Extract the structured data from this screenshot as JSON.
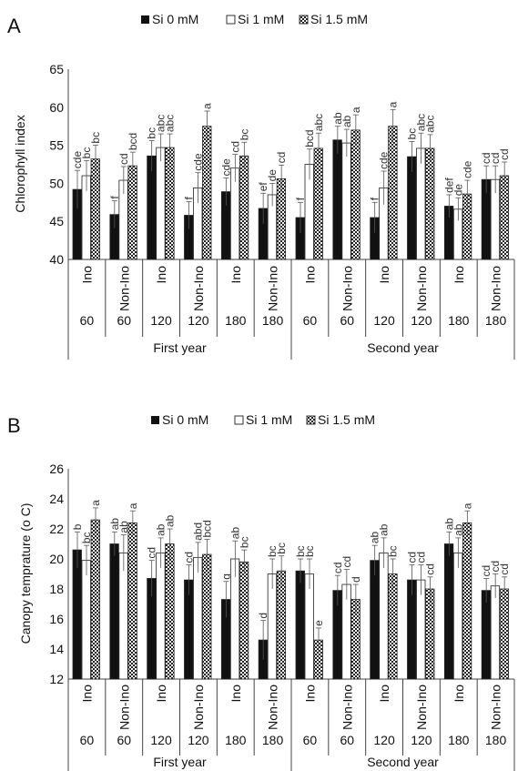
{
  "legend": {
    "series": [
      "Si 0  mM",
      "Si 1 mM",
      "Si 1.5 mM"
    ]
  },
  "colors": {
    "s0": "#111111",
    "s1": "#ffffff",
    "s2": "#ffffff",
    "axis": "#444444"
  },
  "chart_data": [
    {
      "type": "bar",
      "panel_label": "A",
      "ylabel": "Chlorophyll index",
      "ylim": [
        40,
        65
      ],
      "yticks": [
        40,
        45,
        50,
        55,
        60,
        65
      ],
      "categories": [
        "Ino",
        "Non-Ino",
        "Ino",
        "Non-Ino",
        "Ino",
        "Non-Ino",
        "Ino",
        "Non-Ino",
        "Ino",
        "Non-Ino",
        "Ino",
        "Non-Ino"
      ],
      "doses": [
        "60",
        "60",
        "120",
        "120",
        "180",
        "180",
        "60",
        "60",
        "120",
        "120",
        "180",
        "180"
      ],
      "groups": [
        {
          "label": "First year",
          "span": 6
        },
        {
          "label": "Second year",
          "span": 6
        }
      ],
      "series": [
        {
          "name": "Si 0  mM",
          "values": [
            49.2,
            45.9,
            53.6,
            45.8,
            48.9,
            46.7,
            45.5,
            55.7,
            45.5,
            53.5,
            47.0,
            50.5
          ],
          "errors": [
            2.5,
            1.8,
            2.0,
            1.8,
            1.8,
            2.0,
            2.0,
            1.8,
            2.0,
            2.0,
            1.5,
            1.8
          ],
          "labels": [
            "cde",
            "f",
            "bc",
            "f",
            "cde",
            "ef",
            "f",
            "ab",
            "f",
            "bc",
            "def",
            "cd"
          ]
        },
        {
          "name": "Si 1 mM",
          "values": [
            51.0,
            50.4,
            54.7,
            49.4,
            52.0,
            48.5,
            52.5,
            55.3,
            49.4,
            54.6,
            46.6,
            50.5
          ],
          "errors": [
            2.0,
            1.8,
            1.8,
            2.0,
            1.8,
            1.5,
            2.0,
            1.8,
            2.2,
            2.0,
            1.5,
            1.8
          ],
          "labels": [
            "bc",
            "cd",
            "abc",
            "cde",
            "cd",
            "de",
            "bcd",
            "ab",
            "cde",
            "abc",
            "de",
            "cd"
          ]
        },
        {
          "name": "Si 1.5 mM",
          "values": [
            53.2,
            52.3,
            54.7,
            57.5,
            53.6,
            50.6,
            54.6,
            57.0,
            57.5,
            54.6,
            48.6,
            51.0
          ],
          "errors": [
            1.8,
            1.8,
            1.8,
            2.0,
            1.8,
            1.8,
            2.0,
            2.0,
            2.2,
            1.8,
            1.8,
            1.8
          ],
          "labels": [
            "bc",
            "bcd",
            "abc",
            "a",
            "bc",
            "cd",
            "abc",
            "a",
            "a",
            "abc",
            "cde",
            "cd"
          ]
        }
      ]
    },
    {
      "type": "bar",
      "panel_label": "B",
      "ylabel": "Canopy temprature (o C)",
      "ylim": [
        12,
        26
      ],
      "yticks": [
        12,
        14,
        16,
        18,
        20,
        22,
        24,
        26
      ],
      "categories": [
        "Ino",
        "Non-Ino",
        "Ino",
        "Non-Ino",
        "Ino",
        "Non-Ino",
        "Ino",
        "Non-Ino",
        "Ino",
        "Non-Ino",
        "Ino",
        "Non-Ino"
      ],
      "doses": [
        "60",
        "60",
        "120",
        "120",
        "180",
        "180",
        "60",
        "60",
        "120",
        "120",
        "180",
        "180"
      ],
      "groups": [
        {
          "label": "First year",
          "span": 6
        },
        {
          "label": "Second year",
          "span": 6
        }
      ],
      "series": [
        {
          "name": "Si 0  mM",
          "values": [
            20.6,
            21.0,
            18.7,
            18.6,
            17.3,
            14.6,
            19.2,
            17.9,
            19.9,
            18.6,
            21.0,
            17.9
          ],
          "errors": [
            1.2,
            0.8,
            1.2,
            1.0,
            1.2,
            1.3,
            0.8,
            1.0,
            1.0,
            1.0,
            0.8,
            0.8
          ],
          "labels": [
            "b",
            "ab",
            "cd",
            "cd",
            "g",
            "d",
            "bc",
            "cd",
            "ab",
            "cd",
            "ab",
            "cd"
          ]
        },
        {
          "name": "Si 1 mM",
          "values": [
            19.9,
            20.4,
            20.4,
            20.1,
            20.0,
            19.0,
            19.0,
            18.3,
            20.4,
            18.6,
            20.4,
            18.2
          ],
          "errors": [
            1.0,
            1.2,
            1.0,
            1.0,
            1.2,
            1.0,
            1.0,
            1.0,
            1.0,
            1.0,
            1.0,
            0.8
          ],
          "labels": [
            "bc",
            "ab",
            "ab",
            "abd",
            "ab",
            "bc",
            "bc",
            "cd",
            "ab",
            "cd",
            "ab",
            "cd"
          ]
        },
        {
          "name": "Si 1.5 mM",
          "values": [
            22.6,
            22.4,
            21.0,
            20.3,
            19.8,
            19.2,
            14.6,
            17.3,
            19.0,
            18.0,
            22.4,
            18.0
          ],
          "errors": [
            0.8,
            0.8,
            1.0,
            1.0,
            0.8,
            1.0,
            0.8,
            1.0,
            1.0,
            0.8,
            0.8,
            0.8
          ],
          "labels": [
            "a",
            "a",
            "ab",
            "bcd",
            "bc",
            "bc",
            "e",
            "d",
            "bc",
            "cd",
            "a",
            "cd"
          ]
        }
      ]
    }
  ]
}
